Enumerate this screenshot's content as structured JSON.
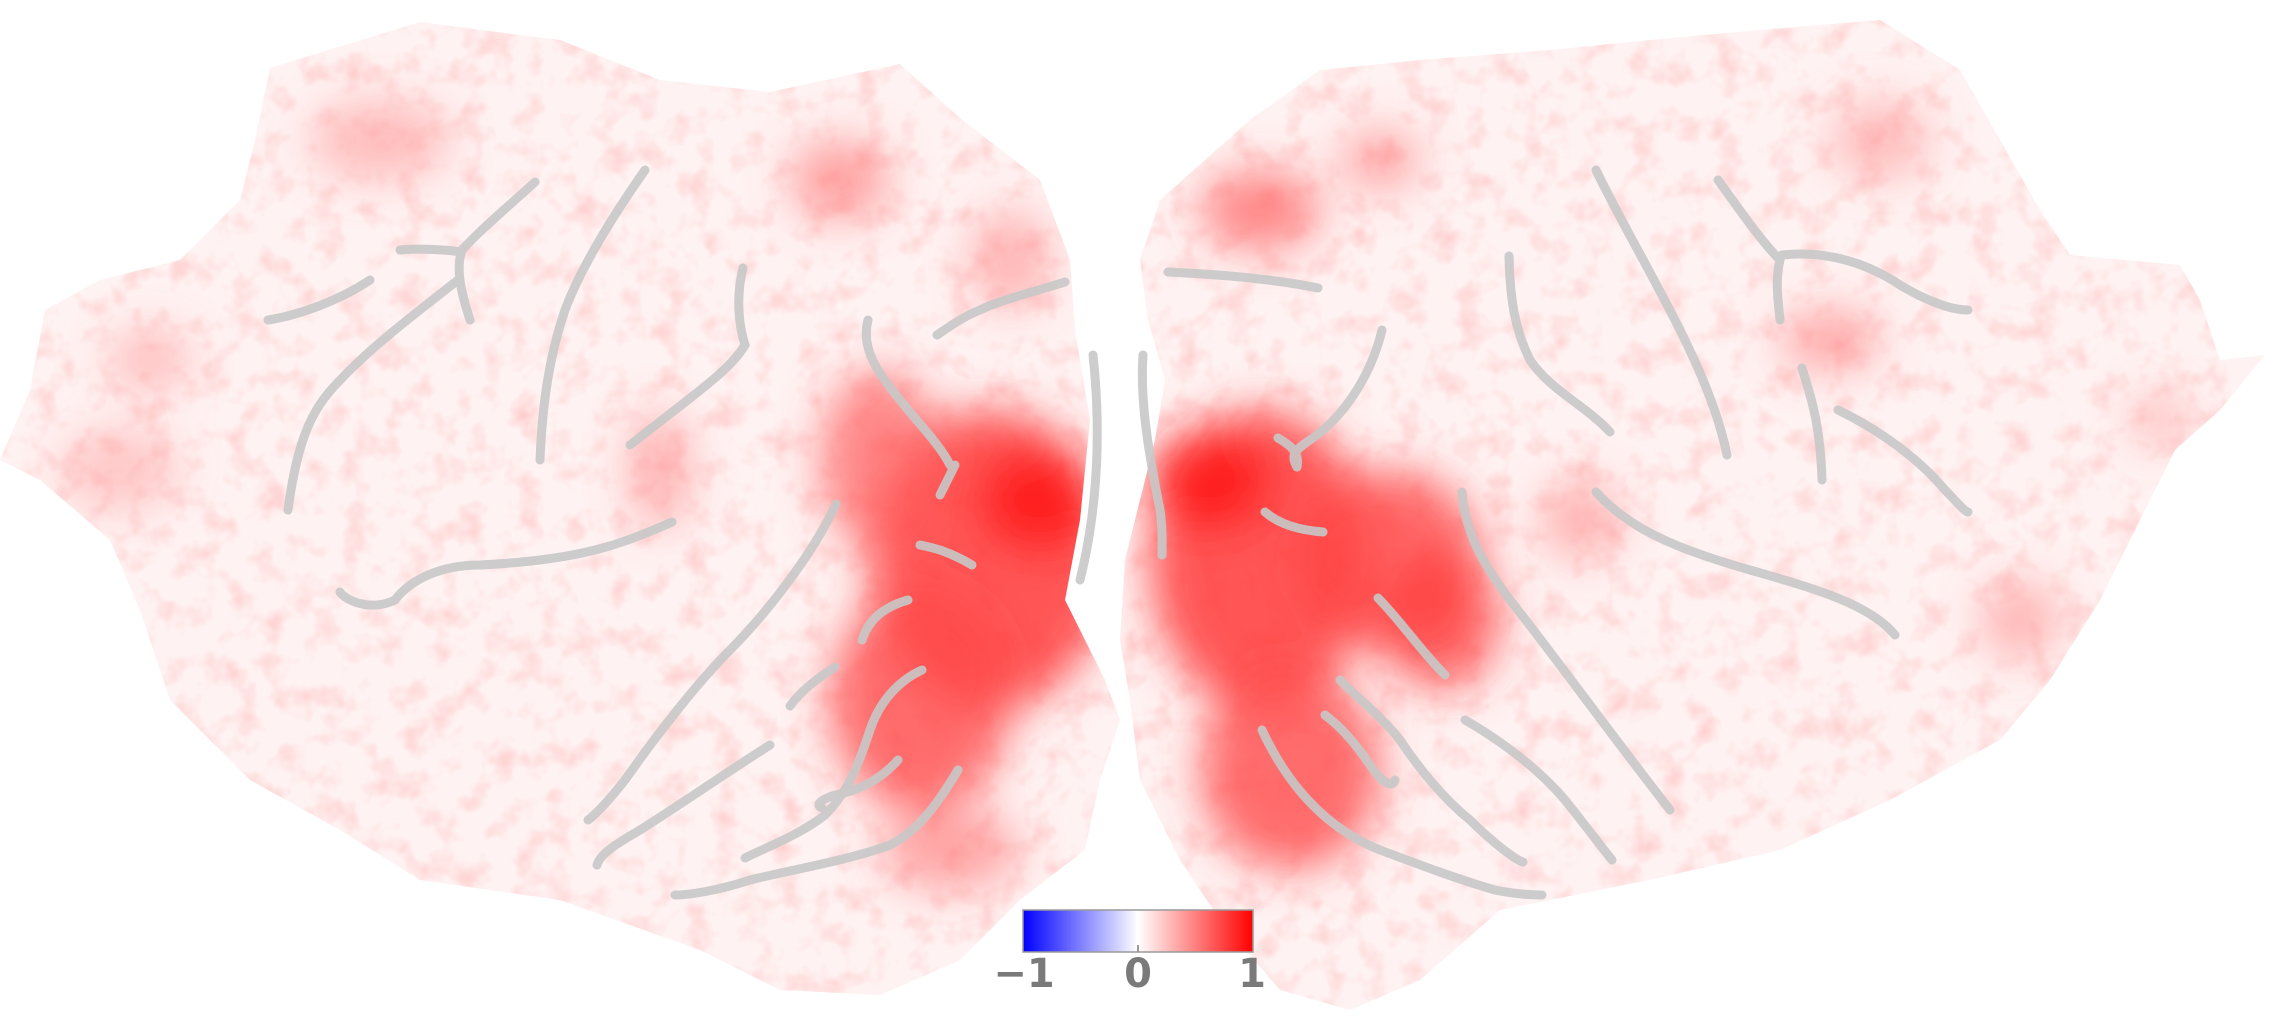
{
  "colorbar": {
    "colors": {
      "min": "#0000ff",
      "mid": "#ffffff",
      "max": "#ff0000"
    },
    "tick_labels": [
      "−1",
      "0",
      "1"
    ]
  },
  "map": {
    "hemispheres": [
      "left",
      "right"
    ],
    "sulcus_line_color": "#c8c8c8",
    "activation_color": "#ff0000"
  }
}
